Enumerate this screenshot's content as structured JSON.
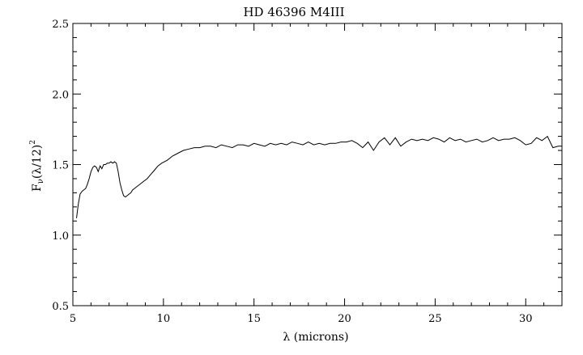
{
  "chart_data": {
    "type": "line",
    "title": "HD  46396  M4III",
    "xlabel": "λ (microns)",
    "ylabel_main": "F",
    "ylabel_sub": "ν",
    "ylabel_rest": "(λ/12)",
    "ylabel_sup": "2",
    "xlim": [
      5,
      32
    ],
    "ylim": [
      0.5,
      2.5
    ],
    "xticks": [
      5,
      10,
      15,
      20,
      25,
      30
    ],
    "xtick_labels": [
      "5",
      "10",
      "15",
      "20",
      "25",
      "30"
    ],
    "yticks": [
      0.5,
      1.0,
      1.5,
      2.0,
      2.5
    ],
    "ytick_labels": [
      "0.5",
      "1.0",
      "1.5",
      "2.0",
      "2.5"
    ],
    "grid": false,
    "line_color": "#000000",
    "series": [
      {
        "x": [
          5.2,
          5.3,
          5.4,
          5.5,
          5.6,
          5.7,
          5.8,
          5.9,
          6.0,
          6.1,
          6.2,
          6.3,
          6.4,
          6.5,
          6.6,
          6.7,
          6.8,
          6.9,
          7.0,
          7.1,
          7.2,
          7.3,
          7.4,
          7.5,
          7.6,
          7.7,
          7.8,
          7.9,
          8.0,
          8.1,
          8.2,
          8.3,
          8.5,
          8.7,
          8.9,
          9.1,
          9.3,
          9.5,
          9.7,
          9.9,
          10.2,
          10.5,
          10.8,
          11.1,
          11.4,
          11.7,
          12.0,
          12.3,
          12.6,
          12.9,
          13.2,
          13.5,
          13.8,
          14.1,
          14.4,
          14.7,
          15.0,
          15.3,
          15.6,
          15.9,
          16.2,
          16.5,
          16.8,
          17.1,
          17.4,
          17.7,
          18.0,
          18.3,
          18.6,
          18.9,
          19.2,
          19.5,
          19.8,
          20.1,
          20.4,
          20.7,
          21.0,
          21.3,
          21.6,
          21.9,
          22.2,
          22.5,
          22.8,
          23.1,
          23.4,
          23.7,
          24.0,
          24.3,
          24.6,
          24.9,
          25.2,
          25.5,
          25.8,
          26.1,
          26.4,
          26.7,
          27.0,
          27.3,
          27.6,
          27.9,
          28.2,
          28.5,
          28.8,
          29.1,
          29.4,
          29.7,
          30.0,
          30.3,
          30.6,
          30.9,
          31.2,
          31.5,
          31.8,
          32.0
        ],
        "values": [
          1.12,
          1.22,
          1.29,
          1.31,
          1.32,
          1.33,
          1.36,
          1.4,
          1.45,
          1.48,
          1.49,
          1.48,
          1.45,
          1.49,
          1.47,
          1.5,
          1.5,
          1.51,
          1.51,
          1.52,
          1.51,
          1.52,
          1.51,
          1.45,
          1.37,
          1.32,
          1.28,
          1.27,
          1.28,
          1.29,
          1.3,
          1.32,
          1.34,
          1.36,
          1.38,
          1.4,
          1.43,
          1.46,
          1.49,
          1.51,
          1.53,
          1.56,
          1.58,
          1.6,
          1.61,
          1.62,
          1.62,
          1.63,
          1.63,
          1.62,
          1.64,
          1.63,
          1.62,
          1.64,
          1.64,
          1.63,
          1.65,
          1.64,
          1.63,
          1.65,
          1.64,
          1.65,
          1.64,
          1.66,
          1.65,
          1.64,
          1.66,
          1.64,
          1.65,
          1.64,
          1.65,
          1.65,
          1.66,
          1.66,
          1.67,
          1.65,
          1.62,
          1.66,
          1.6,
          1.66,
          1.69,
          1.64,
          1.69,
          1.63,
          1.66,
          1.68,
          1.67,
          1.68,
          1.67,
          1.69,
          1.68,
          1.66,
          1.69,
          1.67,
          1.68,
          1.66,
          1.67,
          1.68,
          1.66,
          1.67,
          1.69,
          1.67,
          1.68,
          1.68,
          1.69,
          1.67,
          1.64,
          1.65,
          1.69,
          1.67,
          1.7,
          1.62,
          1.63,
          1.63
        ]
      }
    ]
  }
}
